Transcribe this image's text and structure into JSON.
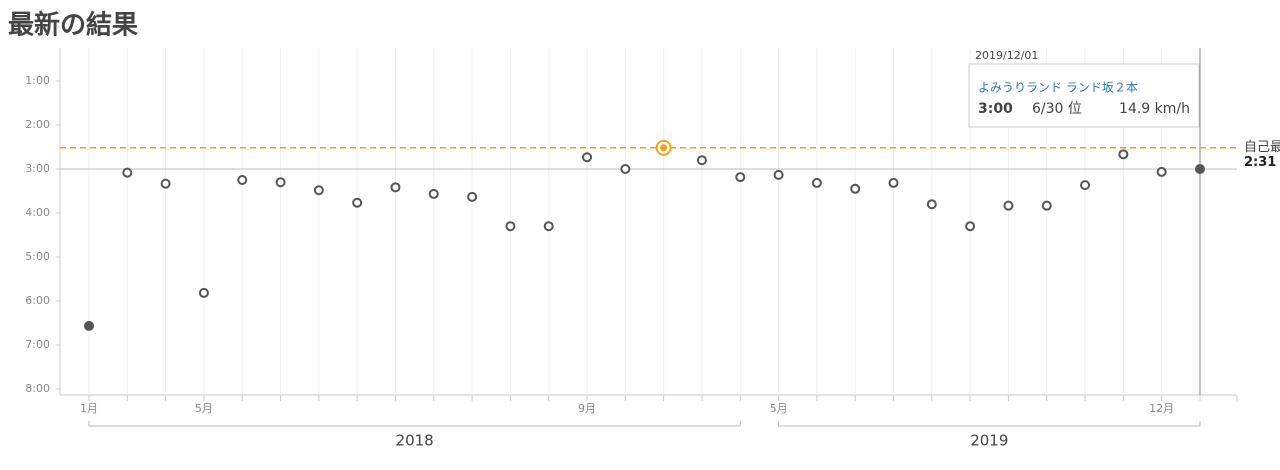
{
  "chart_data": {
    "type": "scatter",
    "title": "最新の結果",
    "categories": [
      "1月",
      null,
      null,
      "5月",
      null,
      null,
      null,
      null,
      null,
      null,
      null,
      null,
      null,
      "9月",
      null,
      null,
      null,
      null,
      "5月",
      null,
      null,
      null,
      null,
      null,
      null,
      null,
      null,
      null,
      "12月",
      null
    ],
    "values": [
      394,
      185,
      200,
      349,
      195,
      198,
      209,
      226,
      205,
      214,
      218,
      258,
      258,
      164,
      180,
      151,
      168,
      191,
      188,
      199,
      207,
      199,
      228,
      258,
      230,
      230,
      202,
      160,
      184,
      180
    ],
    "year_groups": [
      {
        "label": "2018",
        "from": 0,
        "to": 17
      },
      {
        "label": "2019",
        "from": 18,
        "to": 29
      }
    ],
    "ylim": [
      480,
      60
    ],
    "yticks": [
      {
        "value": 60,
        "label": "1:00"
      },
      {
        "value": 120,
        "label": "2:00"
      },
      {
        "value": 180,
        "label": "3:00"
      },
      {
        "value": 240,
        "label": "4:00"
      },
      {
        "value": 300,
        "label": "5:00"
      },
      {
        "value": 360,
        "label": "6:00"
      },
      {
        "value": 420,
        "label": "7:00"
      },
      {
        "value": 480,
        "label": "8:00"
      }
    ],
    "color": "#555555",
    "best_color": "#f0a21e",
    "selected_index": 29,
    "best_index": 15,
    "best": {
      "name": "自己最高",
      "value": 151,
      "label": "2:31"
    },
    "tooltip": {
      "date": "2019/12/01",
      "course": "よみうりランド ランド坂２本",
      "time": "3:00",
      "rank": "6/30 位",
      "speed": "14.9 km/h"
    }
  }
}
